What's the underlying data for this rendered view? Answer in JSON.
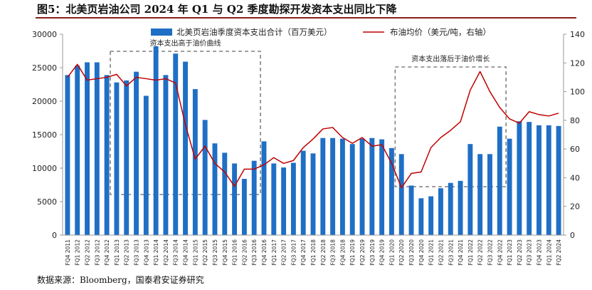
{
  "title": "图5：北美页岩油公司 2024 年 Q1 与 Q2 季度勘探开发资本支出同比下降",
  "source": "数据来源：Bloomberg，国泰君安证券研究",
  "colors": {
    "bar": "#1f6fc5",
    "line": "#c00000",
    "box": "#808080",
    "title_rule": "#8a1f1f"
  },
  "chart_data": {
    "type": "bar+line",
    "categories": [
      "FQ4 2011",
      "FQ1 2012",
      "FQ2 2012",
      "FQ3 2012",
      "FQ4 2012",
      "FQ1 2013",
      "FQ2 2013",
      "FQ3 2013",
      "FQ4 2013",
      "FQ1 2014",
      "FQ2 2014",
      "FQ3 2014",
      "FQ4 2014",
      "FQ1 2015",
      "FQ2 2015",
      "FQ3 2015",
      "FQ4 2015",
      "FQ1 2016",
      "FQ2 2016",
      "FQ3 2016",
      "FQ4 2016",
      "FQ1 2017",
      "FQ2 2017",
      "FQ3 2017",
      "FQ4 2017",
      "FQ1 2018",
      "FQ2 2018",
      "FQ3 2018",
      "FQ4 2018",
      "FQ1 2019",
      "FQ2 2019",
      "FQ3 2019",
      "FQ4 2019",
      "FQ1 2020",
      "FQ2 2020",
      "FQ3 2020",
      "FQ4 2020",
      "FQ1 2021",
      "FQ2 2021",
      "FQ3 2021",
      "FQ4 2021",
      "FQ1 2022",
      "FQ2 2022",
      "FQ3 2022",
      "FQ4 2022",
      "FQ1 2023",
      "FQ2 2023",
      "FQ3 2023",
      "FQ4 2023",
      "FQ1 2024",
      "FQ2 2024"
    ],
    "series": [
      {
        "name": "北美页岩油季度资本支出合计（百万美元）",
        "axis": "left",
        "type": "bar",
        "values": [
          23900,
          25300,
          25800,
          25800,
          23900,
          22800,
          23100,
          24400,
          20800,
          28200,
          23900,
          27100,
          25900,
          21800,
          17200,
          13700,
          12300,
          10700,
          8400,
          11100,
          14000,
          10700,
          10100,
          10800,
          12600,
          12200,
          14500,
          14500,
          14400,
          13600,
          14400,
          14500,
          14300,
          13000,
          12100,
          7400,
          5500,
          5800,
          7000,
          7800,
          8100,
          13600,
          12100,
          12100,
          16200,
          14400,
          17000,
          16900,
          16400,
          16400,
          16300
        ]
      },
      {
        "name": "布油均价（美元/吨，右轴）",
        "axis": "right",
        "type": "line",
        "values": [
          110,
          119,
          108,
          109,
          110,
          112,
          104,
          110,
          109,
          108,
          109,
          106,
          77,
          53,
          62,
          50,
          44,
          34,
          46,
          46,
          49,
          54,
          50,
          52,
          61,
          67,
          74,
          75,
          68,
          64,
          68,
          62,
          63,
          50,
          33,
          43,
          44,
          61,
          68,
          73,
          79,
          101,
          114,
          100,
          89,
          81,
          78,
          86,
          84,
          83,
          85
        ]
      }
    ],
    "left_axis": {
      "min": 0,
      "max": 30000,
      "ticks": [
        0,
        5000,
        10000,
        15000,
        20000,
        25000,
        30000
      ]
    },
    "right_axis": {
      "min": 0,
      "max": 140,
      "ticks": [
        0,
        20,
        40,
        60,
        80,
        100,
        120,
        140
      ]
    },
    "annotations": [
      {
        "text": "资本支出高于油价曲线",
        "from": "FQ1 2013",
        "to": "FQ3 2016"
      },
      {
        "text": "资本支出落后于油价增长",
        "from": "FQ2 2020",
        "to": "FQ4 2022"
      }
    ],
    "legend_position": "top",
    "grid": false
  }
}
